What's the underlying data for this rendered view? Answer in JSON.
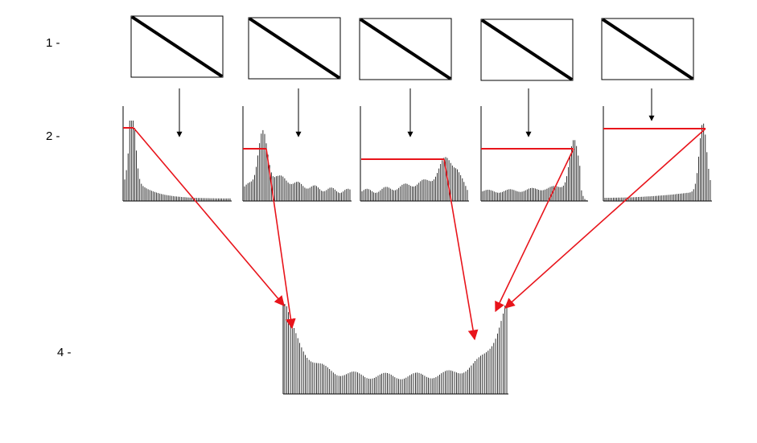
{
  "row_labels": {
    "row1": "1 -",
    "row2": "2 -",
    "row4": "4 -"
  },
  "colors": {
    "connector": "#e8141b",
    "ink": "#000000",
    "background": "#ffffff"
  },
  "panel_count": 5,
  "panel_icon": "diagonal-line-box",
  "histogram_shapes": [
    "peak-left",
    "peak-near-left",
    "rising-middle",
    "peak-right",
    "peak-far-right"
  ],
  "combined_shape": "u-shape"
}
